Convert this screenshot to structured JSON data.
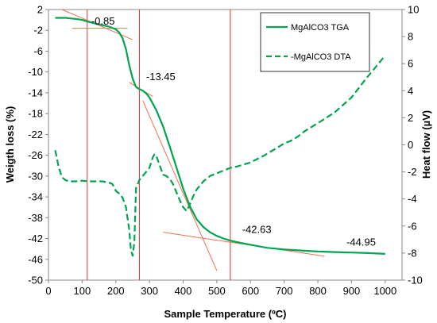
{
  "chart_data": {
    "type": "line",
    "xlabel": "Sample Temperature (ºC)",
    "ylabel_left": "Weigth loss (%)",
    "ylabel_right": "Heat flow (µV)",
    "xlim": [
      0,
      1050
    ],
    "xticks": [
      0,
      100,
      200,
      300,
      400,
      500,
      600,
      700,
      800,
      900,
      1000
    ],
    "ylim_left": [
      -50,
      2
    ],
    "yticks_left": [
      2,
      -2,
      -6,
      -10,
      -14,
      -18,
      -22,
      -26,
      -30,
      -34,
      -38,
      -42,
      -46,
      -50
    ],
    "ylim_right": [
      -10,
      10
    ],
    "yticks_right": [
      10,
      8,
      6,
      4,
      2,
      0,
      -2,
      -4,
      -6,
      -8,
      -10
    ],
    "legend_position": "top-right",
    "colors": {
      "series": "#00a550",
      "guides": "#e8322e",
      "tangent": "#f07050",
      "grid": "none"
    },
    "series": [
      {
        "name": "MgAlCO3 TGA",
        "axis": "left",
        "style": "solid",
        "x": [
          20,
          50,
          80,
          100,
          120,
          140,
          160,
          180,
          200,
          210,
          220,
          230,
          240,
          250,
          260,
          270,
          280,
          290,
          300,
          320,
          340,
          360,
          380,
          400,
          420,
          440,
          460,
          480,
          500,
          520,
          540,
          560,
          600,
          650,
          700,
          750,
          800,
          850,
          900,
          950,
          1000
        ],
        "values": [
          0.4,
          0.4,
          0.2,
          0.0,
          -0.4,
          -0.7,
          -1.0,
          -1.3,
          -1.8,
          -2.4,
          -3.5,
          -5.6,
          -8.7,
          -11.3,
          -12.9,
          -13.3,
          -13.6,
          -14.1,
          -14.9,
          -17.3,
          -20.4,
          -24.3,
          -28.3,
          -32.4,
          -35.8,
          -38.3,
          -39.8,
          -40.8,
          -41.5,
          -42.0,
          -42.4,
          -42.7,
          -43.2,
          -43.8,
          -44.1,
          -44.3,
          -44.5,
          -44.6,
          -44.7,
          -44.8,
          -44.95
        ]
      },
      {
        "name": "-MgAlCO3 DTA",
        "axis": "right",
        "style": "dashed",
        "x": [
          20,
          30,
          40,
          50,
          60,
          80,
          100,
          120,
          140,
          160,
          180,
          190,
          200,
          210,
          220,
          230,
          240,
          245,
          250,
          255,
          260,
          270,
          280,
          290,
          300,
          310,
          315,
          320,
          330,
          340,
          350,
          360,
          370,
          380,
          390,
          400,
          410,
          420,
          430,
          440,
          450,
          460,
          480,
          500,
          520,
          540,
          560,
          600,
          640,
          680,
          700,
          720,
          740,
          760,
          800,
          850,
          900,
          940,
          1000
        ],
        "values": [
          -0.4,
          -1.6,
          -2.4,
          -2.6,
          -2.7,
          -2.7,
          -2.65,
          -2.7,
          -2.7,
          -2.7,
          -2.8,
          -2.9,
          -3.4,
          -3.6,
          -3.9,
          -4.6,
          -6.3,
          -7.8,
          -8.2,
          -7.2,
          -3.2,
          -2.6,
          -2.3,
          -2.0,
          -1.7,
          -0.9,
          -0.7,
          -0.8,
          -1.5,
          -2.2,
          -2.3,
          -2.5,
          -2.9,
          -3.5,
          -4.1,
          -4.6,
          -4.9,
          -4.4,
          -3.8,
          -3.3,
          -3.0,
          -2.7,
          -2.3,
          -2.1,
          -1.9,
          -1.7,
          -1.6,
          -1.3,
          -0.8,
          -0.2,
          0.1,
          0.3,
          0.6,
          1.0,
          1.6,
          2.4,
          3.5,
          4.8,
          6.6
        ]
      }
    ],
    "vlines": [
      115,
      270,
      540
    ],
    "tangents": [
      {
        "x": [
          40,
          250
        ],
        "values": [
          2,
          -3.8
        ]
      },
      {
        "x": [
          70,
          235
        ],
        "values": [
          -1.6,
          -1.6
        ]
      },
      {
        "x": [
          240,
          310
        ],
        "values": [
          -12,
          -14.7
        ]
      },
      {
        "x": [
          280,
          500
        ],
        "values": [
          -15.5,
          -48.2
        ]
      },
      {
        "x": [
          340,
          820
        ],
        "values": [
          -40.8,
          -45.4
        ]
      }
    ],
    "annotations": [
      {
        "text": "-0.85",
        "x": 127,
        "y": -0.9
      },
      {
        "text": "-13.45",
        "x": 290,
        "y": -11.6
      },
      {
        "text": "-42.63",
        "x": 575,
        "y": -40.9
      },
      {
        "text": "-44.95",
        "x": 885,
        "y": -43.4
      }
    ]
  }
}
